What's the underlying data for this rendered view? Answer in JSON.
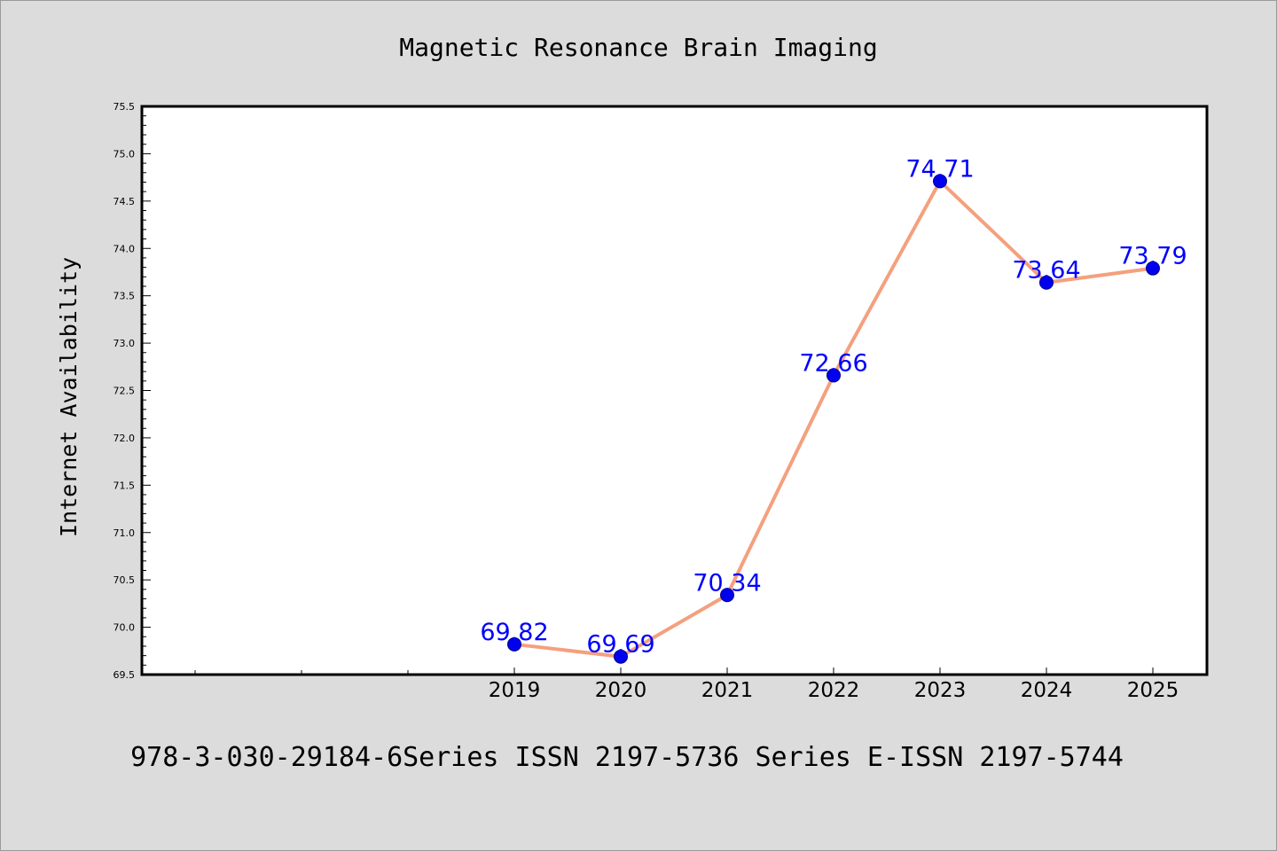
{
  "chart_data": {
    "type": "line",
    "title": "Magnetic Resonance Brain Imaging",
    "ylabel": "Internet Availability",
    "xlabel": "",
    "footer": "978-3-030-29184-6Series ISSN 2197-5736 Series E-ISSN 2197-5744",
    "categories": [
      "2019",
      "2020",
      "2021",
      "2022",
      "2023",
      "2024",
      "2025"
    ],
    "values": [
      69.82,
      69.69,
      70.34,
      72.66,
      74.71,
      73.64,
      73.79
    ],
    "value_labels": [
      "69.82",
      "69.69",
      "70.34",
      "72.66",
      "74.71",
      "73.64",
      "73.79"
    ],
    "ylim": [
      69.5,
      75.5
    ],
    "yticks": [
      "69.5",
      "70.0",
      "70.5",
      "71.0",
      "71.5",
      "72.0",
      "72.5",
      "73.0",
      "73.5",
      "74.0",
      "74.5",
      "75.0",
      "75.5"
    ],
    "legend": "none",
    "grid": false,
    "colors": {
      "background": "#dcdcdc",
      "plot_background": "#ffffff",
      "line": "#f4a07e",
      "marker": "#0000ee",
      "label": "#0000ff",
      "axis": "#000000"
    }
  }
}
